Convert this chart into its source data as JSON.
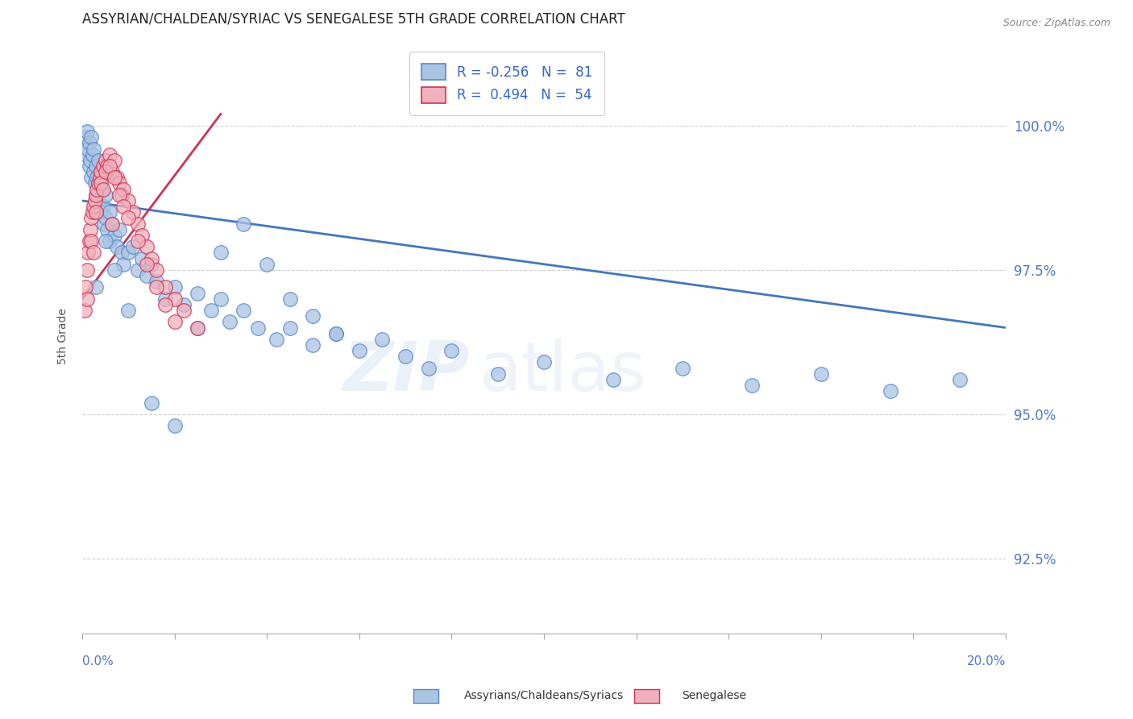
{
  "title": "ASSYRIAN/CHALDEAN/SYRIAC VS SENEGALESE 5TH GRADE CORRELATION CHART",
  "source": "Source: ZipAtlas.com",
  "ylabel": "5th Grade",
  "yticks": [
    92.5,
    95.0,
    97.5,
    100.0
  ],
  "xlim": [
    0.0,
    20.0
  ],
  "ylim": [
    91.2,
    101.5
  ],
  "blue_R": -0.256,
  "blue_N": 81,
  "pink_R": 0.494,
  "pink_N": 54,
  "blue_color": "#aac4e2",
  "pink_color": "#f0b0bc",
  "blue_edge_color": "#5588cc",
  "pink_edge_color": "#cc3355",
  "blue_line_color": "#4477bb",
  "pink_line_color": "#cc3355",
  "legend_label_blue": "Assyrians/Chaldeans/Syriacs",
  "legend_label_pink": "Senegalese",
  "blue_line_x0": 0.0,
  "blue_line_y0": 98.7,
  "blue_line_x1": 20.0,
  "blue_line_y1": 96.5,
  "pink_line_x0": 0.0,
  "pink_line_y0": 97.0,
  "pink_line_x1": 3.0,
  "pink_line_y1": 100.2,
  "blue_scatter_x": [
    0.05,
    0.08,
    0.1,
    0.12,
    0.15,
    0.15,
    0.18,
    0.2,
    0.2,
    0.22,
    0.25,
    0.25,
    0.28,
    0.3,
    0.3,
    0.32,
    0.35,
    0.35,
    0.38,
    0.4,
    0.4,
    0.42,
    0.45,
    0.48,
    0.5,
    0.5,
    0.55,
    0.6,
    0.6,
    0.65,
    0.7,
    0.75,
    0.8,
    0.85,
    0.9,
    1.0,
    1.1,
    1.2,
    1.3,
    1.4,
    1.5,
    1.6,
    1.8,
    2.0,
    2.2,
    2.5,
    2.8,
    3.0,
    3.2,
    3.5,
    3.8,
    4.2,
    4.5,
    5.0,
    5.5,
    6.0,
    6.5,
    7.0,
    7.5,
    8.0,
    9.0,
    10.0,
    11.5,
    13.0,
    14.5,
    16.0,
    17.5,
    19.0,
    0.3,
    0.5,
    0.7,
    1.0,
    1.5,
    2.0,
    2.5,
    3.0,
    3.5,
    4.0,
    4.5,
    5.0,
    5.5
  ],
  "blue_scatter_y": [
    99.8,
    99.5,
    99.9,
    99.6,
    99.7,
    99.3,
    99.4,
    99.8,
    99.1,
    99.5,
    99.6,
    99.2,
    99.0,
    99.3,
    98.8,
    99.1,
    99.4,
    98.7,
    99.0,
    99.2,
    98.5,
    98.9,
    98.6,
    98.3,
    98.8,
    98.4,
    98.2,
    98.5,
    98.0,
    98.3,
    98.1,
    97.9,
    98.2,
    97.8,
    97.6,
    97.8,
    97.9,
    97.5,
    97.7,
    97.4,
    97.6,
    97.3,
    97.0,
    97.2,
    96.9,
    97.1,
    96.8,
    97.0,
    96.6,
    96.8,
    96.5,
    96.3,
    96.5,
    96.2,
    96.4,
    96.1,
    96.3,
    96.0,
    95.8,
    96.1,
    95.7,
    95.9,
    95.6,
    95.8,
    95.5,
    95.7,
    95.4,
    95.6,
    97.2,
    98.0,
    97.5,
    96.8,
    95.2,
    94.8,
    96.5,
    97.8,
    98.3,
    97.6,
    97.0,
    96.7,
    96.4
  ],
  "pink_scatter_x": [
    0.05,
    0.08,
    0.1,
    0.12,
    0.15,
    0.18,
    0.2,
    0.22,
    0.25,
    0.28,
    0.3,
    0.32,
    0.35,
    0.38,
    0.4,
    0.45,
    0.5,
    0.55,
    0.6,
    0.65,
    0.7,
    0.75,
    0.8,
    0.85,
    0.9,
    1.0,
    1.1,
    1.2,
    1.3,
    1.4,
    1.5,
    1.6,
    1.8,
    2.0,
    2.2,
    2.5,
    0.1,
    0.2,
    0.3,
    0.4,
    0.5,
    0.6,
    0.7,
    0.8,
    0.9,
    1.0,
    1.2,
    1.4,
    1.6,
    1.8,
    2.0,
    0.25,
    0.45,
    0.65
  ],
  "pink_scatter_y": [
    96.8,
    97.2,
    97.5,
    97.8,
    98.0,
    98.2,
    98.4,
    98.5,
    98.6,
    98.7,
    98.8,
    98.9,
    99.0,
    99.1,
    99.2,
    99.3,
    99.4,
    99.3,
    99.5,
    99.2,
    99.4,
    99.1,
    99.0,
    98.8,
    98.9,
    98.7,
    98.5,
    98.3,
    98.1,
    97.9,
    97.7,
    97.5,
    97.2,
    97.0,
    96.8,
    96.5,
    97.0,
    98.0,
    98.5,
    99.0,
    99.2,
    99.3,
    99.1,
    98.8,
    98.6,
    98.4,
    98.0,
    97.6,
    97.2,
    96.9,
    96.6,
    97.8,
    98.9,
    98.3
  ]
}
